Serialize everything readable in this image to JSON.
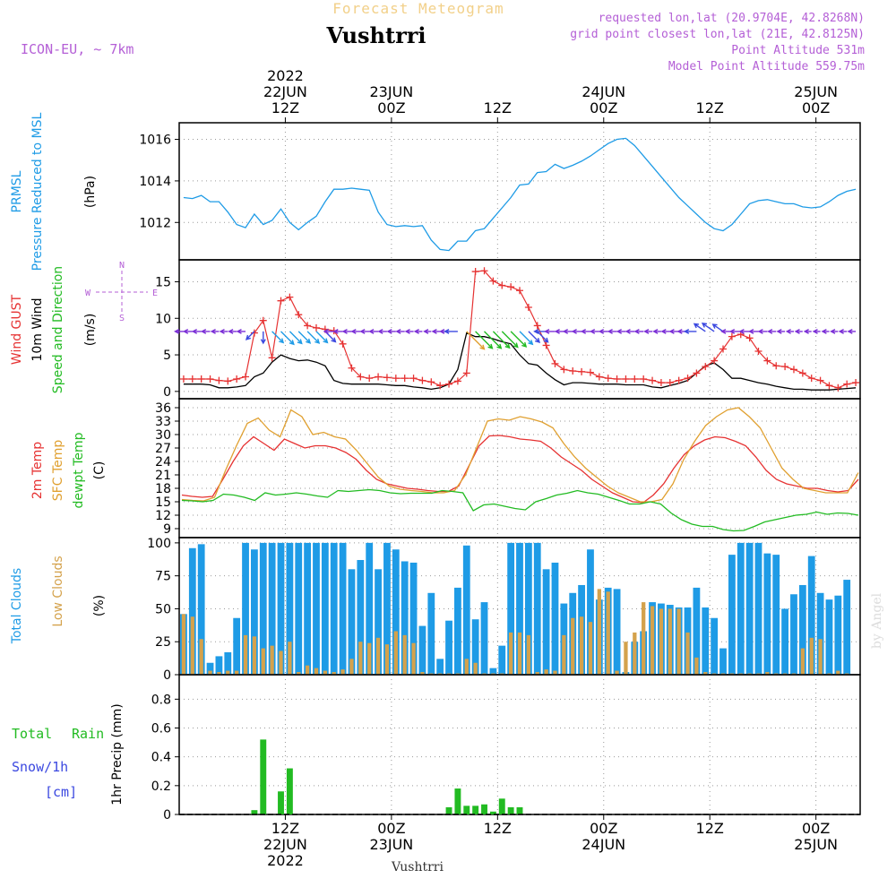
{
  "header": {
    "super_title": "Forecast Meteogram",
    "station": "Vushtrri",
    "model": "ICON-EU, ~ 7km",
    "requested": "requested lon,lat (20.9704E, 42.8268N)",
    "grid": "grid point closest lon,lat (21E, 42.8125N)",
    "point_alt": "Point Altitude 531m",
    "model_alt": "Model Point Altitude 559.75m",
    "footer_station": "Vushtrri",
    "watermark": "by Angel"
  },
  "time_axis": {
    "ticks": [
      {
        "hour": 12,
        "top": [
          "2022",
          "22JUN",
          "12Z"
        ],
        "bottom": [
          "12Z",
          "22JUN",
          "2022"
        ]
      },
      {
        "hour": 24,
        "top": [
          "23JUN",
          "00Z"
        ],
        "bottom": [
          "00Z",
          "23JUN"
        ]
      },
      {
        "hour": 36,
        "top": [
          "12Z"
        ],
        "bottom": [
          "12Z"
        ]
      },
      {
        "hour": 48,
        "top": [
          "24JUN",
          "00Z"
        ],
        "bottom": [
          "00Z",
          "24JUN"
        ]
      },
      {
        "hour": 60,
        "top": [
          "12Z"
        ],
        "bottom": [
          "12Z"
        ]
      },
      {
        "hour": 72,
        "top": [
          "25JUN",
          "00Z"
        ],
        "bottom": [
          "00Z",
          "25JUN"
        ]
      }
    ],
    "range_hours": [
      0,
      77
    ]
  },
  "panels": {
    "pressure": {
      "label_lines": [
        "PRMSL",
        "Pressure Reduced to MSL"
      ],
      "unit": "(hPa)",
      "color": "#1e9be6"
    },
    "wind": {
      "label_lines": [
        "Wind GUST",
        "10m Wind",
        "Speed and Direction"
      ],
      "label_colors": [
        "#e63232",
        "#000000",
        "#22bb22"
      ],
      "unit": "(m/s)",
      "compass": {
        "n": "N",
        "s": "S",
        "w": "W",
        "e": "E"
      }
    },
    "temp": {
      "label_lines": [
        "2m Temp",
        "SFC Temp",
        "dewpt Temp"
      ],
      "label_colors": [
        "#e63232",
        "#e0a030",
        "#22bb22"
      ],
      "unit": "(C)"
    },
    "clouds": {
      "label_lines": [
        "Total Clouds",
        "Low Clouds"
      ],
      "label_colors": [
        "#1e9be6",
        "#d4a24c"
      ],
      "unit": "(%)"
    },
    "precip": {
      "label_a": "Total",
      "label_b": "Rain",
      "label_c": "Snow/1h",
      "label_d": "[cm]",
      "axis_label": "1hr Precip (mm)"
    }
  },
  "chart_data": [
    {
      "type": "line",
      "name_ref": "PRMSL",
      "ylabel": "(hPa)",
      "ylim": [
        1010.2,
        1016.8
      ],
      "yticks": [
        1012,
        1014,
        1016
      ],
      "x_hours": [
        0,
        1,
        2,
        3,
        4,
        5,
        6,
        7,
        8,
        9,
        10,
        11,
        12,
        13,
        14,
        15,
        16,
        17,
        18,
        19,
        20,
        21,
        22,
        23,
        24,
        25,
        26,
        27,
        28,
        29,
        30,
        31,
        32,
        33,
        34,
        35,
        36,
        37,
        38,
        39,
        40,
        41,
        42,
        43,
        44,
        45,
        46,
        47,
        48,
        49,
        50,
        51,
        52,
        53,
        54,
        55,
        56,
        57,
        58,
        59,
        60,
        61,
        62,
        63,
        64,
        65,
        66,
        67,
        68,
        69,
        70,
        71,
        72,
        73,
        74,
        75,
        76
      ],
      "values": [
        1013.2,
        1013.15,
        1013.3,
        1013.0,
        1013.0,
        1012.5,
        1011.9,
        1011.75,
        1012.4,
        1011.9,
        1012.1,
        1012.65,
        1012.0,
        1011.65,
        1012.0,
        1012.3,
        1013.0,
        1013.6,
        1013.6,
        1013.65,
        1013.6,
        1013.55,
        1012.5,
        1011.9,
        1011.8,
        1011.85,
        1011.8,
        1011.85,
        1011.15,
        1010.7,
        1010.65,
        1011.1,
        1011.1,
        1011.6,
        1011.7,
        1012.2,
        1012.7,
        1013.2,
        1013.8,
        1013.85,
        1014.4,
        1014.45,
        1014.8,
        1014.6,
        1014.75,
        1014.95,
        1015.2,
        1015.5,
        1015.8,
        1016.0,
        1016.05,
        1015.7,
        1015.2,
        1014.7,
        1014.2,
        1013.7,
        1013.2,
        1012.8,
        1012.4,
        1012.0,
        1011.7,
        1011.6,
        1011.9,
        1012.4,
        1012.9,
        1013.05,
        1013.1,
        1013.0,
        1012.9,
        1012.9,
        1012.75,
        1012.7,
        1012.75,
        1013.0,
        1013.3,
        1013.5,
        1013.6
      ]
    },
    {
      "type": "line",
      "name_ref": "Wind",
      "ylabel": "(m/s)",
      "ylim": [
        -1,
        18
      ],
      "yticks": [
        0,
        5,
        10,
        15
      ],
      "series": [
        {
          "name": "Wind GUST",
          "color": "#e63232",
          "values": [
            1.7,
            1.7,
            1.7,
            1.7,
            1.5,
            1.4,
            1.7,
            2.0,
            8.0,
            9.7,
            4.6,
            12.4,
            12.9,
            10.5,
            9.0,
            8.7,
            8.5,
            8.3,
            6.5,
            3.2,
            2.0,
            1.8,
            2.0,
            1.9,
            1.8,
            1.8,
            1.8,
            1.5,
            1.3,
            0.8,
            1.0,
            1.4,
            2.5,
            16.4,
            16.5,
            15.1,
            14.5,
            14.3,
            13.8,
            11.5,
            9.0,
            6.3,
            3.8,
            3.0,
            2.8,
            2.7,
            2.6,
            2.0,
            1.8,
            1.7,
            1.7,
            1.7,
            1.7,
            1.5,
            1.2,
            1.2,
            1.5,
            1.8,
            2.5,
            3.4,
            4.2,
            5.8,
            7.5,
            7.8,
            7.3,
            5.5,
            4.2,
            3.5,
            3.4,
            3.0,
            2.5,
            1.8,
            1.5,
            0.8,
            0.5,
            1.0,
            1.2
          ]
        },
        {
          "name": "10m Wind",
          "color": "#000000",
          "values": [
            1.0,
            1.0,
            1.0,
            0.9,
            0.5,
            0.5,
            0.6,
            0.8,
            2.0,
            2.5,
            4.0,
            5.0,
            4.5,
            4.2,
            4.3,
            4.0,
            3.5,
            1.5,
            1.1,
            1.0,
            1.0,
            1.0,
            1.0,
            0.9,
            0.8,
            0.8,
            0.6,
            0.5,
            0.3,
            0.5,
            1.0,
            3.0,
            8.0,
            7.5,
            7.5,
            7.2,
            6.8,
            6.5,
            5.0,
            3.8,
            3.6,
            2.5,
            1.6,
            0.9,
            1.2,
            1.2,
            1.1,
            1.0,
            1.0,
            1.0,
            0.9,
            0.9,
            0.9,
            0.6,
            0.5,
            0.8,
            1.1,
            1.5,
            2.5,
            3.5,
            3.9,
            3.0,
            1.8,
            1.8,
            1.5,
            1.2,
            1.0,
            0.7,
            0.5,
            0.3,
            0.3,
            0.2,
            0.2,
            0.2,
            0.3,
            0.4,
            0.5
          ]
        },
        {
          "name": "Wind Direction",
          "level": 8.2,
          "arrows": [
            "W",
            "W",
            "W",
            "W",
            "W",
            "W",
            "W",
            "W",
            "SW",
            "S",
            "SE",
            "SE",
            "SE",
            "SE",
            "SE",
            "SE",
            "SE",
            "W",
            "W",
            "W",
            "W",
            "W",
            "W",
            "W",
            "W",
            "W",
            "W",
            "W",
            "W",
            "W",
            "W",
            "W",
            "SE",
            "SE",
            "SE",
            "SE",
            "SE",
            "SE",
            "SE",
            "SE",
            "SE",
            "W",
            "W",
            "W",
            "W",
            "W",
            "W",
            "W",
            "W",
            "W",
            "W",
            "W",
            "W",
            "W",
            "W",
            "W",
            "W",
            "W",
            "W",
            "NW",
            "NW",
            "NW",
            "W",
            "W",
            "W",
            "W",
            "W",
            "W",
            "W",
            "W",
            "W",
            "W",
            "W",
            "W",
            "W",
            "W",
            "W"
          ]
        }
      ]
    },
    {
      "type": "line",
      "name_ref": "Temperature",
      "ylabel": "(C)",
      "ylim": [
        7,
        38
      ],
      "yticks": [
        9,
        12,
        15,
        18,
        21,
        24,
        27,
        30,
        33,
        36
      ],
      "series": [
        {
          "name": "2m Temp",
          "color": "#e63232",
          "values": [
            16.5,
            16.2,
            16.0,
            16.2,
            20.0,
            24.0,
            27.5,
            29.5,
            28.0,
            26.5,
            29.0,
            28.0,
            27.0,
            27.5,
            27.5,
            27.0,
            26.0,
            24.5,
            22.0,
            20.0,
            19.0,
            18.5,
            18.0,
            17.8,
            17.5,
            17.3,
            17.3,
            18.5,
            23.0,
            27.5,
            29.7,
            29.8,
            29.5,
            29.0,
            28.8,
            28.5,
            27.0,
            25.0,
            23.5,
            22.0,
            20.0,
            18.5,
            17.0,
            16.0,
            15.0,
            14.8,
            16.5,
            19.0,
            22.5,
            25.5,
            27.5,
            28.8,
            29.5,
            29.3,
            28.5,
            27.5,
            25.0,
            22.0,
            20.0,
            19.0,
            18.5,
            18.0,
            18.0,
            17.5,
            17.2,
            17.5,
            20.0
          ]
        },
        {
          "name": "SFC Temp",
          "color": "#e0a030",
          "values": [
            15.5,
            15.3,
            15.2,
            16.0,
            22.0,
            27.5,
            32.5,
            33.7,
            31.0,
            29.5,
            35.5,
            34.0,
            30.0,
            30.5,
            29.5,
            29.0,
            26.5,
            23.5,
            20.5,
            18.5,
            17.8,
            17.5,
            17.3,
            17.0,
            17.0,
            17.5,
            21.0,
            27.0,
            33.0,
            33.5,
            33.2,
            34.0,
            33.5,
            32.8,
            31.5,
            28.0,
            25.0,
            22.5,
            20.5,
            18.5,
            17.0,
            16.0,
            15.0,
            15.0,
            15.5,
            19.0,
            24.5,
            28.5,
            32.0,
            34.0,
            35.5,
            36.0,
            34.0,
            31.5,
            27.0,
            22.5,
            20.0,
            18.0,
            17.5,
            17.0,
            17.0,
            17.0,
            21.5
          ]
        },
        {
          "name": "dewpt Temp",
          "color": "#22bb22",
          "values": [
            15.3,
            15.2,
            15.0,
            15.3,
            16.7,
            16.5,
            16.0,
            15.3,
            17.0,
            16.5,
            16.7,
            17.0,
            16.7,
            16.3,
            16.0,
            17.5,
            17.3,
            17.5,
            17.7,
            17.5,
            17.0,
            16.8,
            16.9,
            16.9,
            16.9,
            17.5,
            17.3,
            17.0,
            13.0,
            14.3,
            14.5,
            14.0,
            13.5,
            13.2,
            15.0,
            15.7,
            16.5,
            16.9,
            17.5,
            17.0,
            16.7,
            16.0,
            15.3,
            14.5,
            14.5,
            15.0,
            14.5,
            12.5,
            11.0,
            10.0,
            9.5,
            9.5,
            8.8,
            8.5,
            8.6,
            9.5,
            10.5,
            11.0,
            11.5,
            12.0,
            12.2,
            12.7,
            12.2,
            12.5,
            12.4,
            12.0
          ]
        }
      ]
    },
    {
      "type": "bar",
      "name_ref": "Clouds",
      "ylabel": "(%)",
      "ylim": [
        0,
        104
      ],
      "yticks": [
        0,
        25,
        50,
        75,
        100
      ],
      "series": [
        {
          "name": "Total Clouds",
          "color": "#1e9be6",
          "values": [
            46,
            96,
            99,
            9,
            14,
            17,
            43,
            100,
            95,
            100,
            100,
            100,
            100,
            100,
            100,
            100,
            100,
            100,
            100,
            80,
            87,
            100,
            80,
            100,
            95,
            86,
            85,
            37,
            62,
            12,
            41,
            66,
            98,
            42,
            55,
            5,
            22,
            100,
            100,
            100,
            100,
            80,
            85,
            54,
            62,
            68,
            95,
            57,
            66,
            65,
            2,
            25,
            33,
            55,
            54,
            53,
            51,
            51,
            66,
            51,
            43,
            20,
            91,
            100,
            100,
            100,
            92,
            91,
            50,
            61,
            68,
            90,
            62,
            57,
            60,
            72
          ]
        },
        {
          "name": "Low Clouds",
          "color": "#d4a24c",
          "values": [
            46,
            44,
            27,
            3,
            2,
            3,
            3,
            30,
            29,
            20,
            22,
            18,
            25,
            2,
            7,
            5,
            3,
            2,
            4,
            12,
            25,
            24,
            28,
            23,
            33,
            30,
            24,
            2,
            1,
            1,
            1,
            1,
            12,
            9,
            1,
            1,
            1,
            32,
            32,
            30,
            2,
            4,
            3,
            30,
            43,
            44,
            40,
            65,
            63,
            3,
            25,
            32,
            55,
            52,
            50,
            50,
            50,
            32,
            13,
            2,
            1,
            1,
            1,
            1,
            1,
            1,
            2,
            1,
            1,
            1,
            20,
            28,
            27,
            1,
            3,
            1
          ]
        }
      ]
    },
    {
      "type": "bar",
      "name_ref": "Precip",
      "ylabel": "1hr Precip (mm)",
      "ylim": [
        0,
        0.97
      ],
      "yticks": [
        0,
        0.2,
        0.4,
        0.6,
        0.8
      ],
      "series": [
        {
          "name": "Total Rain",
          "color": "#22bb22",
          "values": [
            0,
            0,
            0,
            0,
            0,
            0,
            0,
            0,
            0.03,
            0.52,
            0,
            0.16,
            0.32,
            0,
            0,
            0,
            0,
            0,
            0,
            0,
            0,
            0,
            0,
            0,
            0,
            0,
            0,
            0,
            0,
            0,
            0.05,
            0.18,
            0.06,
            0.06,
            0.07,
            0.02,
            0.11,
            0.05,
            0.05,
            0,
            0,
            0,
            0,
            0,
            0,
            0,
            0,
            0,
            0,
            0,
            0,
            0,
            0,
            0,
            0,
            0,
            0,
            0,
            0,
            0,
            0,
            0,
            0,
            0,
            0,
            0,
            0,
            0,
            0,
            0,
            0,
            0,
            0,
            0,
            0,
            0,
            0
          ]
        }
      ]
    }
  ]
}
